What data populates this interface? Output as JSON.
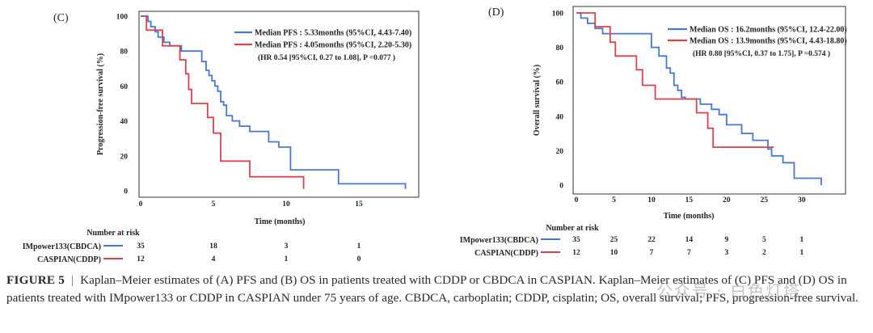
{
  "caption": {
    "label": "FIGURE 5",
    "separator": "|",
    "text": "Kaplan–Meier estimates of (A) PFS and (B) OS in patients treated with CDDP or CBDCA in CASPIAN. Kaplan–Meier estimates of (C) PFS and (D) OS in patients treated with IMpower133 or CDDP in CASPIAN under 75 years of age. CBDCA, carboplatin; CDDP, cisplatin; OS, overall survival; PFS, progression-free survival."
  },
  "watermark": "公众号 · 白色灯塔",
  "colors": {
    "impower": "#4a77d4",
    "caspian": "#d9434d",
    "axis": "#333333"
  },
  "chart_data": [
    {
      "type": "line",
      "panel": "(C)",
      "xlabel": "Time (months)",
      "ylabel": "Progression-free survival (%)",
      "xlim": [
        0,
        18.5
      ],
      "ylim": [
        0,
        100
      ],
      "xticks": [
        0,
        5,
        10,
        15
      ],
      "yticks": [
        0,
        20,
        40,
        60,
        80,
        100
      ],
      "legend_position": "top-right",
      "legend": [
        "Median PFS : 5.33months (95%CI, 4.43-7.40)",
        "Median PFS : 4.05months (95%CI, 2.20-5.30)"
      ],
      "annotation": "(HR 0.54 [95%CI,  0.27 to 1.08], P =0.077 )",
      "risk_title": "Number at risk",
      "risk_times": [
        0,
        5,
        10,
        15
      ],
      "series": [
        {
          "name": "IMpower133(CBDCA)",
          "color": "#4a77d4",
          "at_risk": [
            "35",
            "18",
            "3",
            "1"
          ],
          "x": [
            0,
            0.5,
            0.7,
            1.0,
            1.2,
            1.6,
            2.0,
            2.4,
            2.8,
            3.2,
            3.5,
            4.2,
            4.5,
            4.7,
            4.9,
            5.1,
            5.3,
            5.5,
            5.7,
            5.9,
            6.3,
            6.8,
            7.5,
            8.8,
            9.5,
            10.3,
            13.0,
            13.6,
            18.2
          ],
          "y": [
            100,
            97,
            94,
            91,
            88,
            85,
            83,
            83,
            80,
            80,
            80,
            74,
            69,
            66,
            63,
            60,
            57,
            51,
            49,
            43,
            40,
            37,
            34,
            28,
            25,
            12,
            12,
            4,
            1
          ]
        },
        {
          "name": "CASPIAN(CDDP)",
          "color": "#d9434d",
          "at_risk": [
            "12",
            "4",
            "1",
            "0"
          ],
          "x": [
            0,
            0.4,
            1.5,
            2.7,
            3.1,
            3.3,
            3.5,
            4.6,
            5.0,
            5.5,
            7.5,
            11.2
          ],
          "y": [
            100,
            92,
            83,
            75,
            67,
            58,
            50,
            42,
            33,
            17,
            8,
            1
          ]
        }
      ]
    },
    {
      "type": "line",
      "panel": "(D)",
      "xlabel": "Time (months)",
      "ylabel": "Overall survival (%)",
      "xlim": [
        0,
        34
      ],
      "ylim": [
        0,
        100
      ],
      "xticks": [
        0,
        5,
        10,
        15,
        20,
        25,
        30
      ],
      "yticks": [
        0,
        20,
        40,
        60,
        80,
        100
      ],
      "legend_position": "top-right",
      "legend": [
        "Median OS : 16.2months (95%CI, 12.4-22.00)",
        "Median OS : 13.9months (95%CI, 4.43-18.80)"
      ],
      "annotation": "(HR 0.80 [95%CI,  0.37 to 1.75], P =0.574 )",
      "risk_title": "Number at risk",
      "risk_times": [
        0,
        5,
        10,
        15,
        20,
        25,
        30
      ],
      "series": [
        {
          "name": "IMpower133(CBDCA)",
          "color": "#4a77d4",
          "at_risk": [
            "35",
            "25",
            "22",
            "14",
            "9",
            "5",
            "1"
          ],
          "x": [
            0,
            0.6,
            1.5,
            2.5,
            3.5,
            4.3,
            5.0,
            10.0,
            11.0,
            12.0,
            12.5,
            13.0,
            13.5,
            14.0,
            14.5,
            15.5,
            16.5,
            17.0,
            18.0,
            19.0,
            20.0,
            22.0,
            23.5,
            25.5,
            26.0,
            27.5,
            29.0,
            32.6
          ],
          "y": [
            100,
            97,
            94,
            91,
            88,
            88,
            88,
            80,
            75,
            68,
            65,
            58,
            55,
            51,
            50,
            50,
            47,
            47,
            44,
            41,
            35,
            30,
            26,
            21,
            17,
            13,
            4,
            0
          ]
        },
        {
          "name": "CASPIAN(CDDP)",
          "color": "#d9434d",
          "at_risk": [
            "12",
            "10",
            "7",
            "7",
            "3",
            "2",
            "1"
          ],
          "x": [
            0,
            2.5,
            4.5,
            5.2,
            8.0,
            8.8,
            9.5,
            10.5,
            16.0,
            16.8,
            17.5,
            18.2,
            26.3
          ],
          "y": [
            100,
            92,
            83,
            75,
            67,
            58,
            58,
            50,
            42,
            42,
            33,
            22,
            22
          ]
        }
      ]
    }
  ]
}
